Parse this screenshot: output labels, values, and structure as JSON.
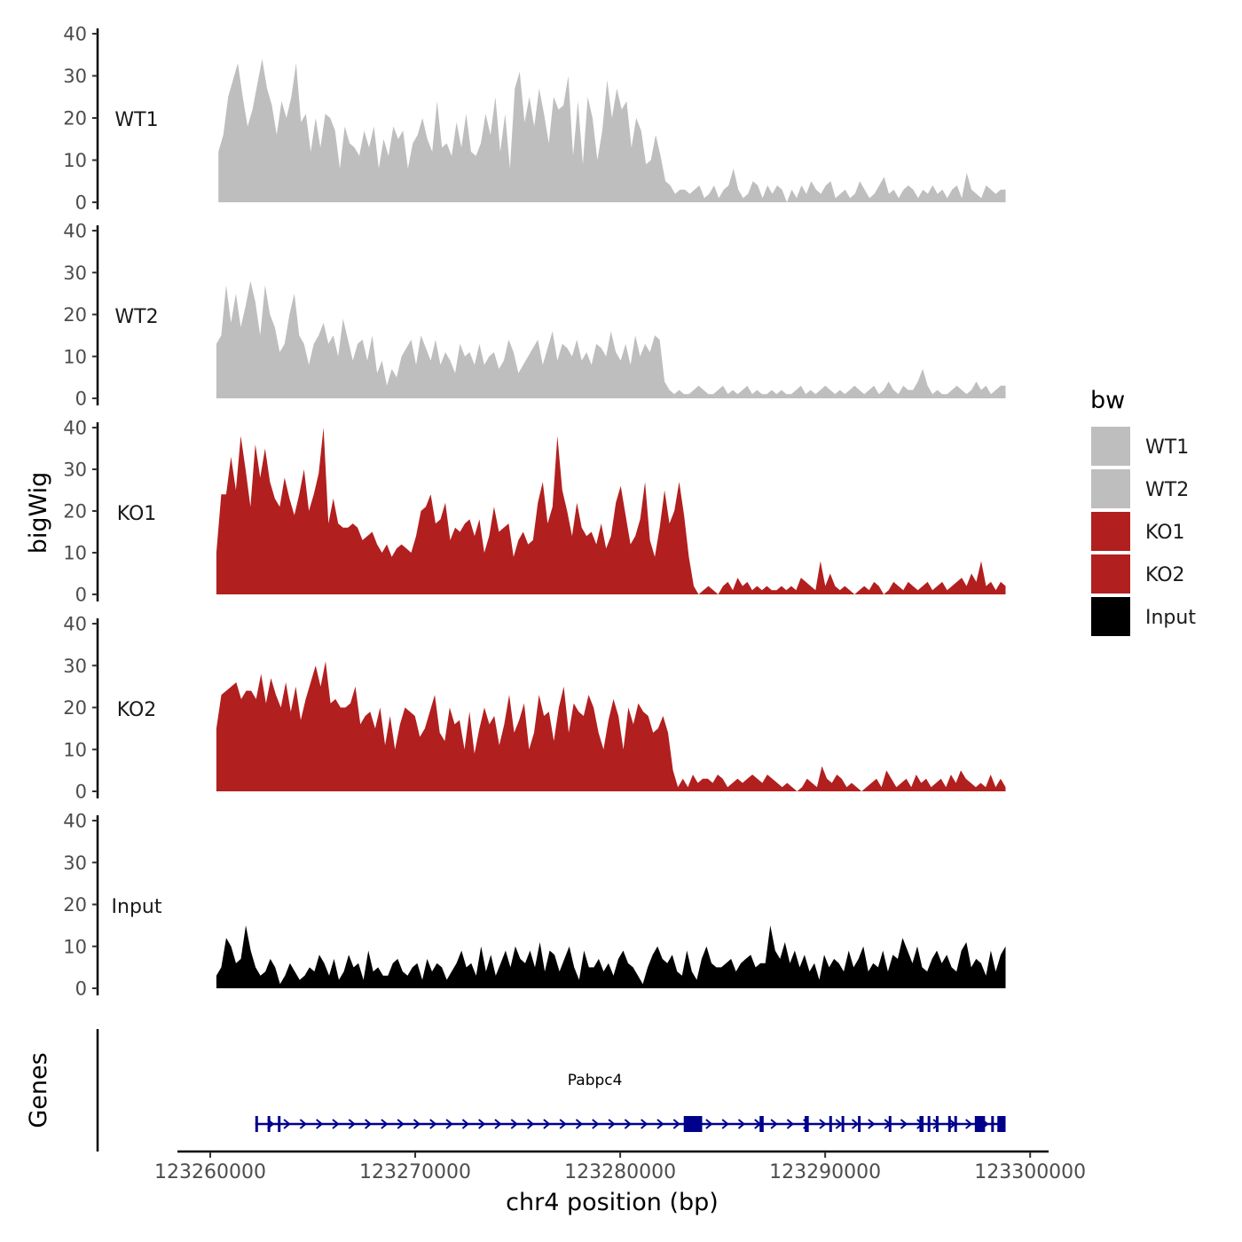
{
  "chart_data": {
    "type": "area",
    "ylabel": "bigWig",
    "xlabel": "chr4 position (bp)",
    "ylim": [
      0,
      40
    ],
    "y_ticks": [
      0,
      10,
      20,
      30,
      40
    ],
    "x_ticks": [
      123260000,
      123270000,
      123280000,
      123290000,
      123300000
    ],
    "x_tick_labels": [
      "123260000",
      "123270000",
      "123280000",
      "123290000",
      "123300000"
    ],
    "xlim": [
      123258400,
      123300900
    ],
    "legend_title": "bw",
    "legend_position": "right",
    "tracks": [
      {
        "name": "WT1",
        "color": "#bebebe",
        "x_start": 123260400,
        "x_end": 123298800,
        "values": [
          12,
          16,
          25,
          29,
          33,
          25,
          18,
          22,
          28,
          34,
          27,
          23,
          16,
          24,
          20,
          25,
          33,
          19,
          21,
          12,
          20,
          13,
          21,
          20,
          17,
          8,
          18,
          14,
          13,
          11,
          17,
          13,
          18,
          8,
          15,
          11,
          18,
          15,
          17,
          8,
          14,
          16,
          20,
          15,
          12,
          24,
          13,
          14,
          11,
          19,
          13,
          21,
          12,
          11,
          14,
          21,
          16,
          25,
          12,
          21,
          8,
          27,
          31,
          19,
          25,
          18,
          27,
          21,
          14,
          25,
          22,
          23,
          30,
          11,
          24,
          9,
          25,
          20,
          10,
          17,
          29,
          20,
          27,
          22,
          24,
          13,
          20,
          17,
          9,
          10,
          16,
          11,
          5,
          4,
          2,
          3,
          3,
          2,
          3,
          4,
          1,
          2,
          4,
          1,
          3,
          4,
          8,
          3,
          1,
          2,
          5,
          4,
          1,
          4,
          2,
          4,
          3,
          0,
          3,
          1,
          4,
          2,
          5,
          3,
          2,
          4,
          5,
          1,
          2,
          3,
          1,
          2,
          5,
          3,
          1,
          2,
          4,
          6,
          2,
          3,
          1,
          3,
          4,
          3,
          1,
          3,
          2,
          4,
          2,
          3,
          1,
          3,
          4,
          1,
          7,
          3,
          2,
          1,
          4,
          3,
          2,
          3,
          3
        ]
      },
      {
        "name": "WT2",
        "color": "#bebebe",
        "x_start": 123260300,
        "x_end": 123298800,
        "values": [
          13,
          15,
          27,
          18,
          25,
          17,
          22,
          28,
          23,
          15,
          27,
          20,
          17,
          11,
          13,
          20,
          25,
          15,
          13,
          8,
          13,
          15,
          18,
          13,
          15,
          10,
          19,
          14,
          9,
          13,
          14,
          9,
          15,
          6,
          9,
          3,
          7,
          5,
          10,
          12,
          14,
          8,
          15,
          12,
          9,
          14,
          8,
          11,
          9,
          6,
          13,
          10,
          11,
          8,
          13,
          8,
          10,
          11,
          7,
          9,
          14,
          11,
          6,
          8,
          10,
          12,
          14,
          8,
          12,
          16,
          9,
          13,
          12,
          10,
          14,
          9,
          11,
          8,
          13,
          12,
          10,
          16,
          11,
          9,
          13,
          8,
          15,
          10,
          13,
          11,
          15,
          14,
          4,
          2,
          1,
          2,
          1,
          1,
          2,
          3,
          2,
          1,
          1,
          2,
          3,
          1,
          2,
          1,
          2,
          3,
          1,
          2,
          1,
          1,
          2,
          1,
          2,
          1,
          1,
          2,
          3,
          1,
          2,
          1,
          2,
          3,
          2,
          1,
          2,
          1,
          2,
          3,
          2,
          1,
          2,
          3,
          1,
          2,
          4,
          2,
          1,
          3,
          2,
          2,
          4,
          7,
          3,
          1,
          2,
          1,
          1,
          2,
          3,
          2,
          1,
          2,
          4,
          2,
          3,
          1,
          2,
          3,
          3
        ]
      },
      {
        "name": "KO1",
        "color": "#b21f1f",
        "x_start": 123260300,
        "x_end": 123298800,
        "values": [
          10,
          24,
          24,
          33,
          25,
          38,
          30,
          21,
          36,
          28,
          35,
          27,
          23,
          21,
          28,
          23,
          19,
          24,
          30,
          20,
          24,
          29,
          40,
          17,
          23,
          17,
          16,
          16,
          17,
          16,
          13,
          14,
          15,
          12,
          10,
          12,
          9,
          11,
          12,
          11,
          10,
          14,
          20,
          21,
          24,
          17,
          18,
          22,
          13,
          16,
          15,
          17,
          18,
          14,
          18,
          10,
          14,
          21,
          15,
          16,
          17,
          9,
          13,
          15,
          12,
          13,
          22,
          27,
          17,
          21,
          38,
          25,
          20,
          14,
          22,
          16,
          14,
          15,
          12,
          17,
          11,
          14,
          22,
          26,
          19,
          12,
          14,
          18,
          27,
          13,
          9,
          16,
          25,
          17,
          20,
          27,
          19,
          9,
          2,
          0,
          1,
          2,
          1,
          0,
          2,
          3,
          1,
          4,
          2,
          3,
          1,
          2,
          1,
          2,
          1,
          1,
          2,
          1,
          2,
          1,
          4,
          3,
          2,
          1,
          8,
          2,
          5,
          2,
          1,
          2,
          1,
          0,
          1,
          2,
          1,
          3,
          2,
          0,
          1,
          3,
          2,
          1,
          3,
          2,
          1,
          2,
          3,
          1,
          2,
          3,
          1,
          2,
          3,
          4,
          2,
          5,
          3,
          8,
          2,
          3,
          1,
          3,
          2
        ]
      },
      {
        "name": "KO2",
        "color": "#b21f1f",
        "x_start": 123260300,
        "x_end": 123298800,
        "values": [
          15,
          23,
          24,
          25,
          26,
          22,
          24,
          24,
          22,
          28,
          21,
          27,
          23,
          20,
          26,
          19,
          25,
          17,
          22,
          26,
          30,
          25,
          31,
          21,
          22,
          20,
          20,
          21,
          25,
          16,
          18,
          19,
          15,
          20,
          11,
          18,
          10,
          16,
          20,
          19,
          18,
          13,
          15,
          19,
          23,
          14,
          12,
          20,
          16,
          17,
          10,
          19,
          9,
          15,
          20,
          16,
          18,
          11,
          16,
          23,
          14,
          17,
          21,
          10,
          14,
          23,
          18,
          19,
          12,
          20,
          25,
          14,
          21,
          19,
          18,
          23,
          20,
          14,
          10,
          17,
          22,
          18,
          10,
          20,
          16,
          21,
          19,
          18,
          14,
          15,
          18,
          14,
          5,
          1,
          3,
          1,
          4,
          2,
          3,
          3,
          2,
          4,
          3,
          1,
          2,
          3,
          2,
          3,
          4,
          3,
          2,
          4,
          3,
          2,
          1,
          2,
          1,
          0,
          1,
          3,
          2,
          1,
          6,
          3,
          2,
          4,
          3,
          1,
          2,
          1,
          0,
          1,
          2,
          3,
          1,
          5,
          3,
          1,
          2,
          3,
          1,
          4,
          2,
          3,
          1,
          2,
          3,
          1,
          4,
          2,
          5,
          3,
          2,
          1,
          2,
          1,
          4,
          1,
          3,
          1
        ]
      },
      {
        "name": "Input",
        "color": "#000000",
        "x_start": 123260300,
        "x_end": 123298800,
        "values": [
          3,
          5,
          12,
          10,
          6,
          7,
          15,
          9,
          5,
          3,
          4,
          7,
          5,
          1,
          3,
          6,
          4,
          2,
          3,
          5,
          4,
          8,
          6,
          3,
          7,
          2,
          4,
          8,
          5,
          6,
          2,
          9,
          4,
          5,
          3,
          3,
          6,
          7,
          4,
          3,
          5,
          6,
          2,
          7,
          4,
          6,
          5,
          2,
          4,
          6,
          9,
          5,
          6,
          3,
          10,
          4,
          8,
          3,
          6,
          9,
          5,
          10,
          7,
          6,
          9,
          5,
          11,
          4,
          9,
          8,
          4,
          7,
          10,
          5,
          2,
          9,
          5,
          5,
          7,
          4,
          6,
          3,
          7,
          9,
          6,
          5,
          3,
          1,
          5,
          8,
          10,
          7,
          6,
          8,
          4,
          3,
          9,
          4,
          2,
          7,
          10,
          6,
          5,
          5,
          6,
          7,
          4,
          6,
          7,
          8,
          5,
          6,
          6,
          15,
          9,
          7,
          11,
          6,
          9,
          5,
          8,
          4,
          6,
          2,
          8,
          5,
          7,
          6,
          4,
          9,
          5,
          7,
          10,
          4,
          6,
          5,
          9,
          4,
          8,
          7,
          12,
          9,
          6,
          10,
          5,
          4,
          7,
          9,
          6,
          8,
          5,
          4,
          9,
          11,
          5,
          7,
          6,
          3,
          9,
          4,
          8,
          10
        ]
      }
    ],
    "gene_track": {
      "label": "Genes",
      "color": "#00008b",
      "genes": [
        {
          "name": "Pabpc4",
          "strand": "+",
          "x_start": 123262200,
          "x_end": 123298800,
          "exons": [
            [
              123262200,
              123262300
            ],
            [
              123262800,
              123262900
            ],
            [
              123263300,
              123263400
            ],
            [
              123283100,
              123284000
            ],
            [
              123286800,
              123287000
            ],
            [
              123289000,
              123289200
            ],
            [
              123290200,
              123290300
            ],
            [
              123290800,
              123290900
            ],
            [
              123291600,
              123291700
            ],
            [
              123293100,
              123293200
            ],
            [
              123294600,
              123294800
            ],
            [
              123295000,
              123295100
            ],
            [
              123295400,
              123295500
            ],
            [
              123296000,
              123296100
            ],
            [
              123296300,
              123296400
            ],
            [
              123297300,
              123297800
            ],
            [
              123298100,
              123298200
            ],
            [
              123298400,
              123298800
            ]
          ]
        }
      ]
    }
  }
}
